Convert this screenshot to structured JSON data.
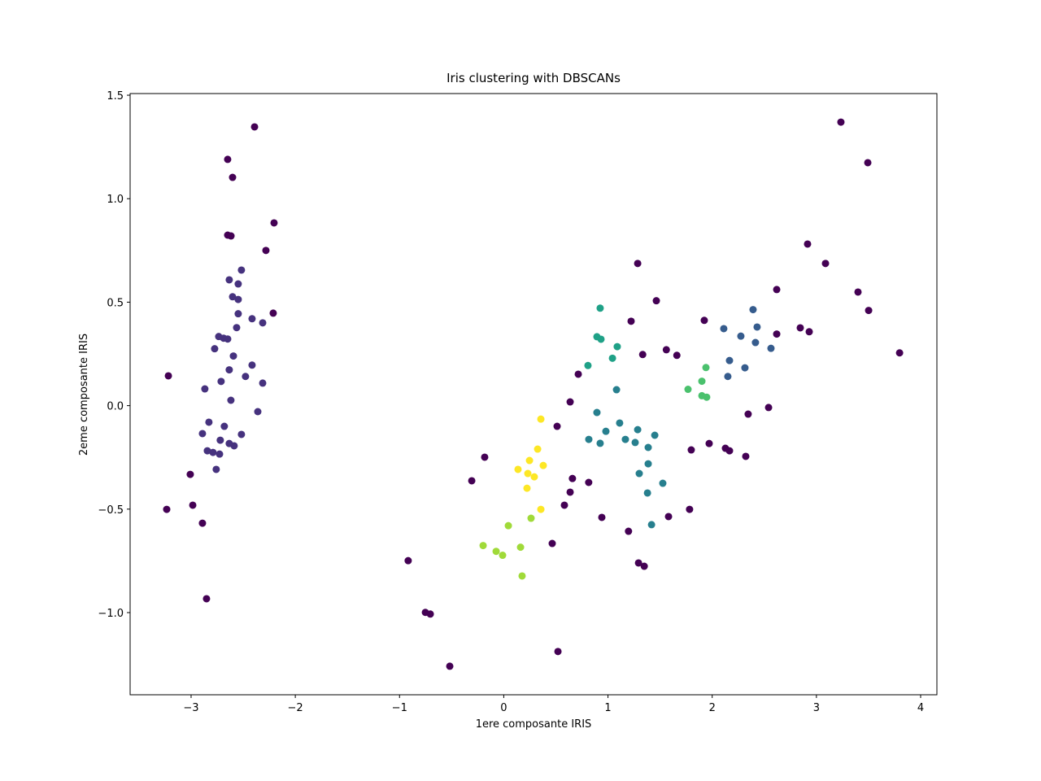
{
  "chart_data": {
    "type": "scatter",
    "title": "Iris clustering with DBSCANs",
    "x_label": "1ere composante IRIS",
    "y_label": "2eme composante IRIS",
    "xlim": [
      -3.585,
      4.156
    ],
    "ylim": [
      -1.397,
      1.508
    ],
    "xticks": [
      {
        "value": -3,
        "label": "−3"
      },
      {
        "value": -2,
        "label": "−2"
      },
      {
        "value": -1,
        "label": "−1"
      },
      0,
      1,
      2,
      3,
      4
    ],
    "yticks": [
      {
        "value": -1.0,
        "label": "−1.0"
      },
      {
        "value": -0.5,
        "label": "−0.5"
      },
      {
        "value": 0.0,
        "label": "0.0"
      },
      0.5,
      {
        "value": 1.0,
        "label": "1.0"
      },
      1.5
    ],
    "series": [
      {
        "color": "#440154",
        "x": [
          -2.391,
          -2.649,
          -2.602,
          -2.204,
          -2.649,
          -2.617,
          -2.282,
          -2.212,
          -3.218,
          -3.008,
          -2.984,
          -3.234,
          -2.891,
          -2.852,
          3.235,
          3.493,
          2.915,
          3.087,
          1.285,
          3.399,
          2.619,
          3.501,
          1.464,
          1.924,
          1.222,
          2.845,
          2.931,
          2.619,
          3.798,
          1.56,
          1.333,
          1.661,
          0.715,
          0.637,
          2.541,
          2.345,
          0.512,
          1.971,
          1.799,
          2.127,
          2.166,
          2.322,
          -0.183,
          0.659,
          -0.307,
          0.815,
          0.637,
          1.783,
          0.582,
          0.941,
          1.581,
          1.197,
          0.465,
          -0.917,
          1.293,
          1.348,
          -0.752,
          -0.705,
          0.52,
          -0.518
        ],
        "y": [
          1.347,
          1.19,
          1.103,
          0.883,
          0.824,
          0.82,
          0.75,
          0.447,
          0.144,
          -0.332,
          -0.481,
          -0.501,
          -0.568,
          -0.933,
          1.37,
          1.174,
          0.781,
          0.687,
          0.687,
          0.549,
          0.561,
          0.46,
          0.507,
          0.412,
          0.408,
          0.376,
          0.357,
          0.346,
          0.255,
          0.27,
          0.247,
          0.243,
          0.152,
          0.018,
          -0.009,
          -0.041,
          -0.1,
          -0.183,
          -0.214,
          -0.206,
          -0.218,
          -0.245,
          -0.249,
          -0.352,
          -0.363,
          -0.371,
          -0.418,
          -0.501,
          -0.481,
          -0.54,
          -0.536,
          -0.607,
          -0.666,
          -0.749,
          -0.76,
          -0.776,
          -0.999,
          -1.007,
          -1.188,
          -1.259
        ]
      },
      {
        "color": "#46327e",
        "x": [
          -2.517,
          -2.634,
          -2.548,
          -2.602,
          -2.548,
          -2.548,
          -2.415,
          -2.563,
          -2.313,
          -2.735,
          -2.688,
          -2.649,
          -2.774,
          -2.594,
          -2.415,
          -2.634,
          -2.478,
          -2.712,
          -2.313,
          -2.868,
          -2.618,
          -2.36,
          -2.829,
          -2.681,
          -2.891,
          -2.517,
          -2.72,
          -2.844,
          -2.79,
          -2.634,
          -2.587,
          -2.727,
          -2.759
        ],
        "y": [
          0.655,
          0.608,
          0.588,
          0.526,
          0.513,
          0.444,
          0.42,
          0.377,
          0.4,
          0.334,
          0.326,
          0.322,
          0.275,
          0.24,
          0.196,
          0.173,
          0.141,
          0.117,
          0.109,
          0.081,
          0.026,
          -0.029,
          -0.08,
          -0.1,
          -0.135,
          -0.139,
          -0.167,
          -0.218,
          -0.226,
          -0.183,
          -0.194,
          -0.234,
          -0.308
        ]
      },
      {
        "color": "#365c8d",
        "x": [
          2.392,
          2.111,
          2.431,
          2.275,
          2.415,
          2.564,
          2.166,
          2.314,
          2.15
        ],
        "y": [
          0.464,
          0.372,
          0.38,
          0.336,
          0.305,
          0.277,
          0.218,
          0.183,
          0.141
        ]
      },
      {
        "color": "#277f8e",
        "x": [
          1.082,
          0.894,
          1.112,
          0.98,
          1.285,
          0.816,
          0.925,
          1.167,
          1.261,
          1.386,
          1.449,
          1.386,
          1.3,
          1.526,
          1.379,
          1.418
        ],
        "y": [
          0.077,
          -0.033,
          -0.084,
          -0.124,
          -0.116,
          -0.163,
          -0.182,
          -0.163,
          -0.178,
          -0.202,
          -0.143,
          -0.281,
          -0.328,
          -0.375,
          -0.422,
          -0.575
        ]
      },
      {
        "color": "#1fa187",
        "x": [
          0.925,
          0.894,
          0.933,
          1.089,
          1.043,
          0.808
        ],
        "y": [
          0.471,
          0.333,
          0.321,
          0.285,
          0.229,
          0.194
        ]
      },
      {
        "color": "#4ac16d",
        "x": [
          1.94,
          1.901,
          1.768,
          1.901,
          1.947
        ],
        "y": [
          0.184,
          0.118,
          0.079,
          0.048,
          0.041
        ]
      },
      {
        "color": "#a0da39",
        "x": [
          0.044,
          -0.198,
          -0.073,
          -0.011,
          0.161,
          0.262,
          0.176
        ],
        "y": [
          -0.58,
          -0.676,
          -0.704,
          -0.723,
          -0.684,
          -0.544,
          -0.823
        ]
      },
      {
        "color": "#fde725",
        "x": [
          0.356,
          0.325,
          0.247,
          0.137,
          0.379,
          0.231,
          0.293,
          0.223,
          0.356
        ],
        "y": [
          -0.065,
          -0.21,
          -0.265,
          -0.308,
          -0.289,
          -0.328,
          -0.344,
          -0.399,
          -0.501
        ]
      }
    ]
  }
}
